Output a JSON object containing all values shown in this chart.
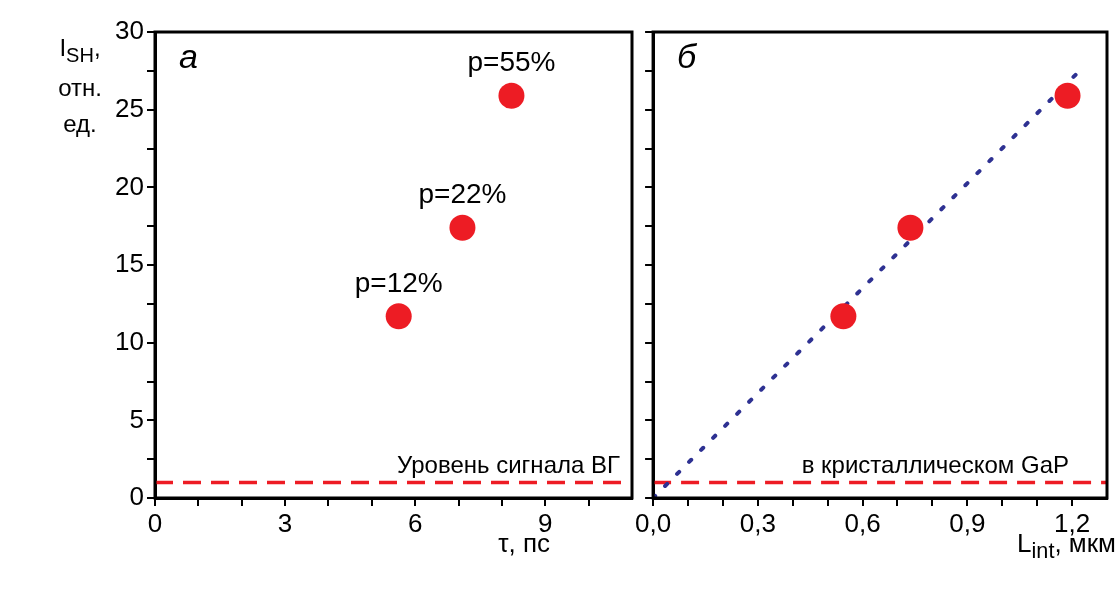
{
  "chart_data": [
    {
      "type": "scatter",
      "ylabel": "I$_{SH}$, отн. ед.",
      "xlabel": "τ, пс",
      "series": [
        {
          "color": "#ed1c24",
          "x": [
            5.62,
            7.09,
            8.22
          ],
          "values": [
            11.7,
            17.4,
            25.9
          ]
        }
      ],
      "xlim": [
        0,
        11
      ],
      "xticks": [
        0,
        {
          "value": 1,
          "label": null
        },
        {
          "value": 2,
          "label": null
        },
        3,
        {
          "value": 4,
          "label": null
        },
        {
          "value": 5,
          "label": null
        },
        6,
        {
          "value": 7,
          "label": null
        },
        {
          "value": 8,
          "label": null
        },
        9,
        {
          "value": 10,
          "label": null
        }
      ],
      "ylim": [
        0,
        30
      ],
      "yticks": [
        0,
        {
          "value": 2.5,
          "label": null
        },
        5,
        {
          "value": 7.5,
          "label": null
        },
        10,
        {
          "value": 12.5,
          "label": null
        },
        15,
        {
          "value": 17.5,
          "label": null
        },
        20,
        {
          "value": 22.5,
          "label": null
        },
        25,
        {
          "value": 27.5,
          "label": null
        },
        30
      ],
      "ref_lines": [
        {
          "axis": "y",
          "value": 1,
          "label": "Уровень сигнала ВГ",
          "color": "#ed1c24",
          "line_style": "dashed"
        }
      ],
      "annotations": [
        "а",
        {
          "text": "p=12%",
          "x": 5.62,
          "y": 11.7
        },
        {
          "text": "p=22%",
          "x": 7.09,
          "y": 17.4
        },
        {
          "text": "p=55%",
          "x": 8.22,
          "y": 25.9
        }
      ],
      "marker": "circle",
      "grid": false,
      "legend": false
    },
    {
      "type": "scatter",
      "xlabel": "L$_{int}$, мкм",
      "series": [
        {
          "color": "#ed1c24",
          "x": [
            0.545,
            0.737,
            1.187
          ],
          "values": [
            11.7,
            17.4,
            25.9
          ]
        },
        {
          "type": "line",
          "color": "#2e3192",
          "x": [
            0,
            1.217
          ],
          "values": [
            0,
            27.4
          ],
          "line_style": "dotted",
          "marker": "none"
        }
      ],
      "xlim": [
        0,
        1.3
      ],
      "xticks": [
        {
          "value": 0,
          "label": "0,0"
        },
        {
          "value": 0.1,
          "label": null
        },
        {
          "value": 0.2,
          "label": null
        },
        {
          "value": 0.3,
          "label": "0,3"
        },
        {
          "value": 0.4,
          "label": null
        },
        {
          "value": 0.5,
          "label": null
        },
        {
          "value": 0.6,
          "label": "0,6"
        },
        {
          "value": 0.7,
          "label": null
        },
        {
          "value": 0.8,
          "label": null
        },
        {
          "value": 0.9,
          "label": "0,9"
        },
        {
          "value": 1.0,
          "label": null
        },
        {
          "value": 1.1,
          "label": null
        },
        {
          "value": 1.2,
          "label": "1,2"
        }
      ],
      "ylim": [
        0,
        30
      ],
      "yticks": [
        {
          "value": 0,
          "label": null
        },
        {
          "value": 2.5,
          "label": null
        },
        {
          "value": 5,
          "label": null
        },
        {
          "value": 7.5,
          "label": null
        },
        {
          "value": 10,
          "label": null
        },
        {
          "value": 12.5,
          "label": null
        },
        {
          "value": 15,
          "label": null
        },
        {
          "value": 17.5,
          "label": null
        },
        {
          "value": 20,
          "label": null
        },
        {
          "value": 22.5,
          "label": null
        },
        {
          "value": 25,
          "label": null
        },
        {
          "value": 27.5,
          "label": null
        },
        {
          "value": 30,
          "label": null
        }
      ],
      "tick_labels": "x",
      "ref_lines": [
        {
          "axis": "y",
          "value": 1,
          "label": "в кристаллическом GaP",
          "color": "#ed1c24",
          "line_style": "dashed"
        }
      ],
      "annotations": [
        "б"
      ],
      "marker": "circle",
      "grid": false,
      "legend": false
    }
  ]
}
